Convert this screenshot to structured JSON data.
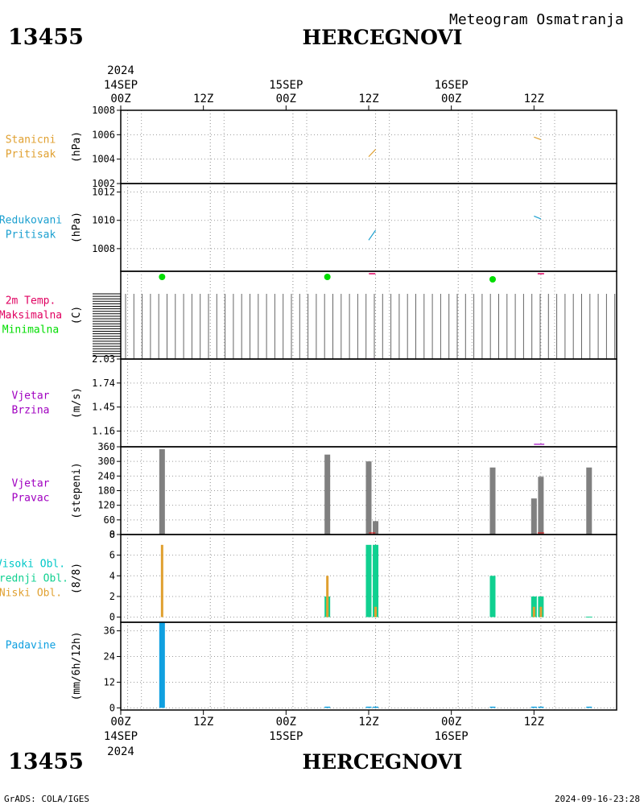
{
  "header": {
    "station_id": "13455",
    "station_name": "HERCEGNOVI",
    "subtitle": "Meteogram Osmatranja"
  },
  "footer": {
    "station_id": "13455",
    "station_name": "HERCEGNOVI",
    "credit": "GrADS: COLA/IGES",
    "timestamp": "2024-09-16-23:28"
  },
  "colors": {
    "station_pressure": "#e0a030",
    "reduced_pressure": "#1ca0d0",
    "tmax": "#e00060",
    "tmin": "#00dd00",
    "wind_speed": "#a000c0",
    "wind_direction": "#808080",
    "high_cloud": "#00c8c8",
    "middle_cloud": "#10d090",
    "low_cloud": "#e0a030",
    "precip": "#10a0e0",
    "red": "#e00000"
  },
  "chart_data": {
    "type": "meteogram",
    "time_axis": {
      "start": "2024-09-14T00Z",
      "end": "2024-09-17T00Z",
      "top_ticks": [
        {
          "label": "00Z",
          "day": "14SEP",
          "year": "2024"
        },
        {
          "label": "12Z"
        },
        {
          "label": "00Z",
          "day": "15SEP"
        },
        {
          "label": "12Z"
        },
        {
          "label": "00Z",
          "day": "16SEP"
        },
        {
          "label": "12Z"
        }
      ],
      "bottom_ticks": [
        {
          "label": "00Z",
          "day": "14SEP",
          "year": "2024"
        },
        {
          "label": "12Z"
        },
        {
          "label": "00Z",
          "day": "15SEP"
        },
        {
          "label": "12Z"
        },
        {
          "label": "00Z",
          "day": "16SEP"
        },
        {
          "label": "12Z"
        }
      ]
    },
    "panels": [
      {
        "id": "station-pressure",
        "labels": [
          "Stanicni",
          "Pritisak"
        ],
        "unit": "(hPa)",
        "ylim": [
          1002,
          1008
        ],
        "ticks": [
          "1008",
          "1006",
          "1004",
          "1002"
        ],
        "series": [
          {
            "type": "line",
            "color_key": "station_pressure",
            "points": [
              [
                36.0,
                1004.2
              ],
              [
                37.0,
                1004.8
              ]
            ]
          },
          {
            "type": "line",
            "color_key": "station_pressure",
            "points": [
              [
                60.0,
                1005.8
              ],
              [
                61.0,
                1005.6
              ]
            ]
          }
        ]
      },
      {
        "id": "reduced-pressure",
        "labels": [
          "Redukovani",
          "Pritisak"
        ],
        "unit": "(hPa)",
        "ylim": [
          1006.4,
          1012.6
        ],
        "ticks": [
          "1012",
          "1010",
          "1008"
        ],
        "series": [
          {
            "type": "line",
            "color_key": "reduced_pressure",
            "points": [
              [
                36.0,
                1008.6
              ],
              [
                37.0,
                1009.3
              ]
            ]
          },
          {
            "type": "line",
            "color_key": "reduced_pressure",
            "points": [
              [
                60.0,
                1010.3
              ],
              [
                61.0,
                1010.1
              ]
            ]
          }
        ]
      },
      {
        "id": "temperature",
        "labels": [
          "2m Temp.",
          "Maksimalna",
          "Minimalna"
        ],
        "label_color_keys": [
          "tmax",
          "tmax",
          "tmin"
        ],
        "unit": "(C)",
        "tmin_points": [
          [
            6,
            "tmin"
          ],
          [
            30,
            "tmin"
          ],
          [
            54,
            "tmin"
          ]
        ],
        "tmax_marks": [
          [
            36.5,
            "tmax"
          ],
          [
            61.0,
            "tmax"
          ]
        ]
      },
      {
        "id": "wind-speed",
        "labels": [
          "Vjetar",
          "Brzina"
        ],
        "unit": "(m/s)",
        "ylim": [
          0.97,
          2.03
        ],
        "ticks": [
          "2.03",
          "1.74",
          "1.45",
          "1.16"
        ],
        "series": [
          {
            "type": "line",
            "color_key": "wind_speed",
            "points": [
              [
                36.0,
                2.03
              ],
              [
                37.0,
                2.03
              ]
            ]
          },
          {
            "type": "line",
            "color_key": "wind_speed",
            "points": [
              [
                60.0,
                1.0
              ],
              [
                61.5,
                1.0
              ]
            ]
          }
        ]
      },
      {
        "id": "wind-direction",
        "labels": [
          "Vjetar",
          "Pravac"
        ],
        "unit": "(stepeni)",
        "ylim": [
          0,
          360
        ],
        "ticks": [
          "360",
          "300",
          "240",
          "180",
          "120",
          "60",
          "0"
        ],
        "bars": [
          {
            "x": 6,
            "value": 350
          },
          {
            "x": 30,
            "value": 328
          },
          {
            "x": 36,
            "value": 300
          },
          {
            "x": 37,
            "value": 55
          },
          {
            "x": 54,
            "value": 275
          },
          {
            "x": 60,
            "value": 148
          },
          {
            "x": 61,
            "value": 237
          },
          {
            "x": 68,
            "value": 275
          }
        ]
      },
      {
        "id": "clouds",
        "labels": [
          "Visoki Obl.",
          "Srednji Obl.",
          "Niski Obl."
        ],
        "label_color_keys": [
          "high_cloud",
          "middle_cloud",
          "low_cloud"
        ],
        "unit": "(8/8)",
        "ylim": [
          -0.5,
          8
        ],
        "ticks": [
          "8",
          "6",
          "4",
          "2",
          "0"
        ],
        "bars": [
          {
            "x": 6,
            "low": 7,
            "middle": 0
          },
          {
            "x": 30,
            "low": 4,
            "middle": 2
          },
          {
            "x": 36,
            "low": 0,
            "middle": 7
          },
          {
            "x": 37,
            "low": 1,
            "middle": 7
          },
          {
            "x": 54,
            "low": 0,
            "middle": 4
          },
          {
            "x": 60,
            "low": 1,
            "middle": 2
          },
          {
            "x": 61,
            "low": 1,
            "middle": 2
          },
          {
            "x": 68,
            "low": 0,
            "middle": 0
          }
        ]
      },
      {
        "id": "precipitation",
        "labels": [
          "Padavine"
        ],
        "unit": "(mm/6h/12h)",
        "ylim": [
          -1,
          40
        ],
        "ticks": [
          "36",
          "24",
          "12",
          "0"
        ],
        "bars": [
          {
            "x": 6,
            "value": 40
          },
          {
            "x": 30,
            "value": 0.3
          },
          {
            "x": 36,
            "value": 0.3
          },
          {
            "x": 37,
            "value": 0.3
          },
          {
            "x": 54,
            "value": 0.3
          },
          {
            "x": 60,
            "value": 0.3
          },
          {
            "x": 61,
            "value": 0.3
          },
          {
            "x": 68,
            "value": 0.3
          }
        ]
      }
    ]
  }
}
